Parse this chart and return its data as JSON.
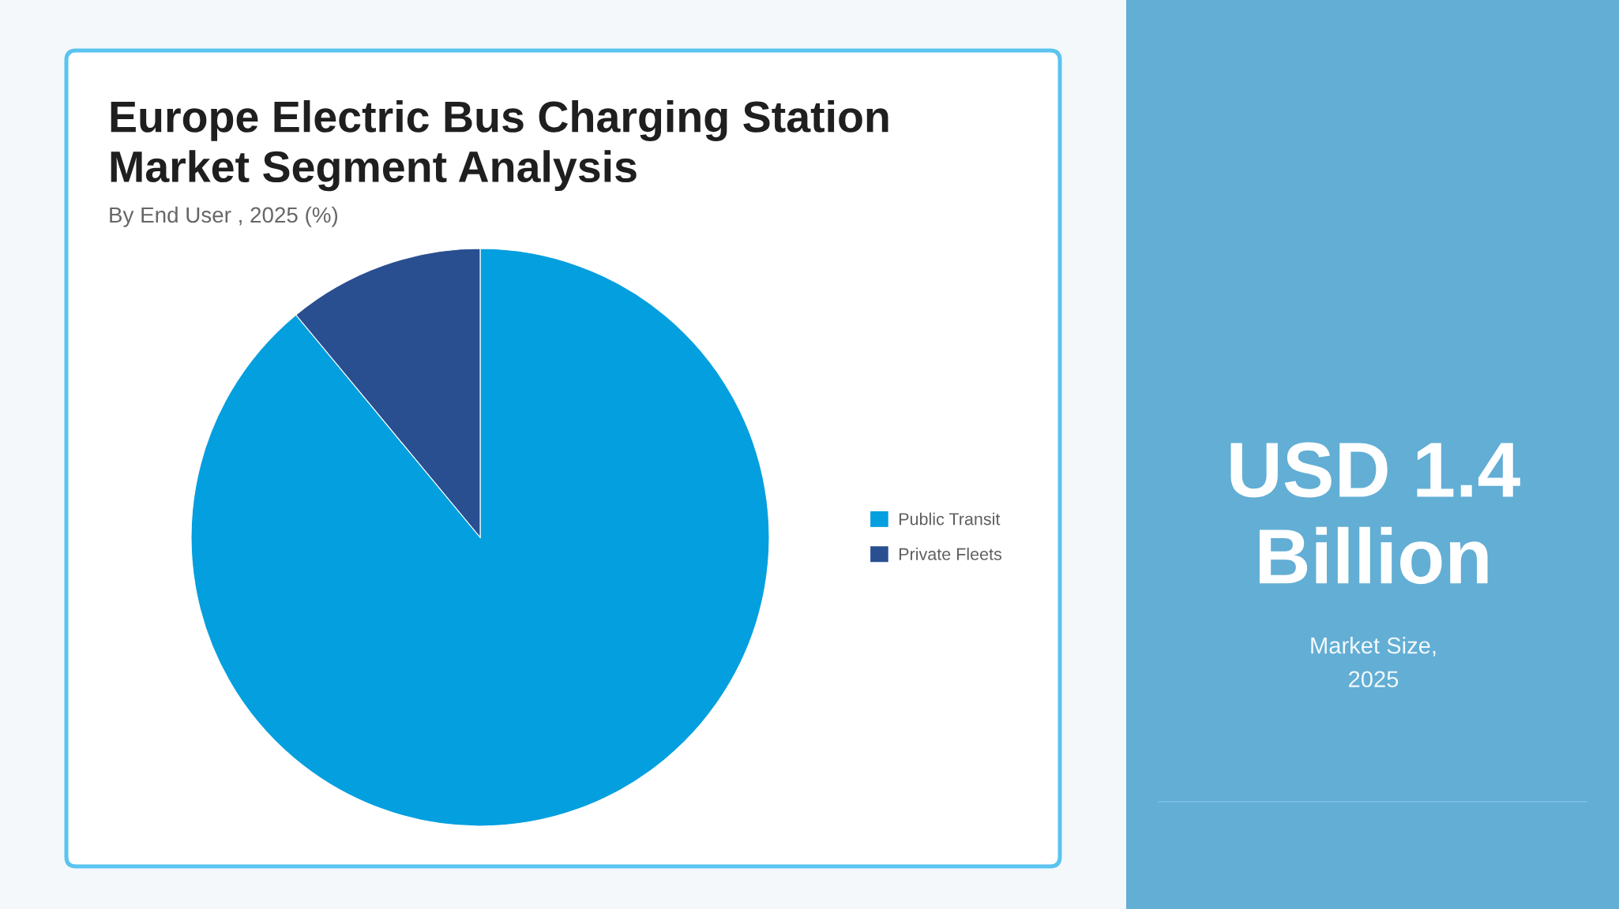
{
  "chart_data": [
    {
      "type": "pie",
      "title": "Europe Electric Bus Charging Station\nMarket Segment Analysis",
      "subtitle": "By End User , 2025 (%)",
      "categories": [
        "Public Transit",
        "Private Fleets"
      ],
      "values": [
        89,
        11
      ],
      "colors": [
        "#049fdf",
        "#294f91"
      ],
      "legend": "right"
    },
    {
      "type": "other",
      "title": "USD 1.4\nBillion",
      "subtitle": "Market Size,\n2025"
    }
  ]
}
